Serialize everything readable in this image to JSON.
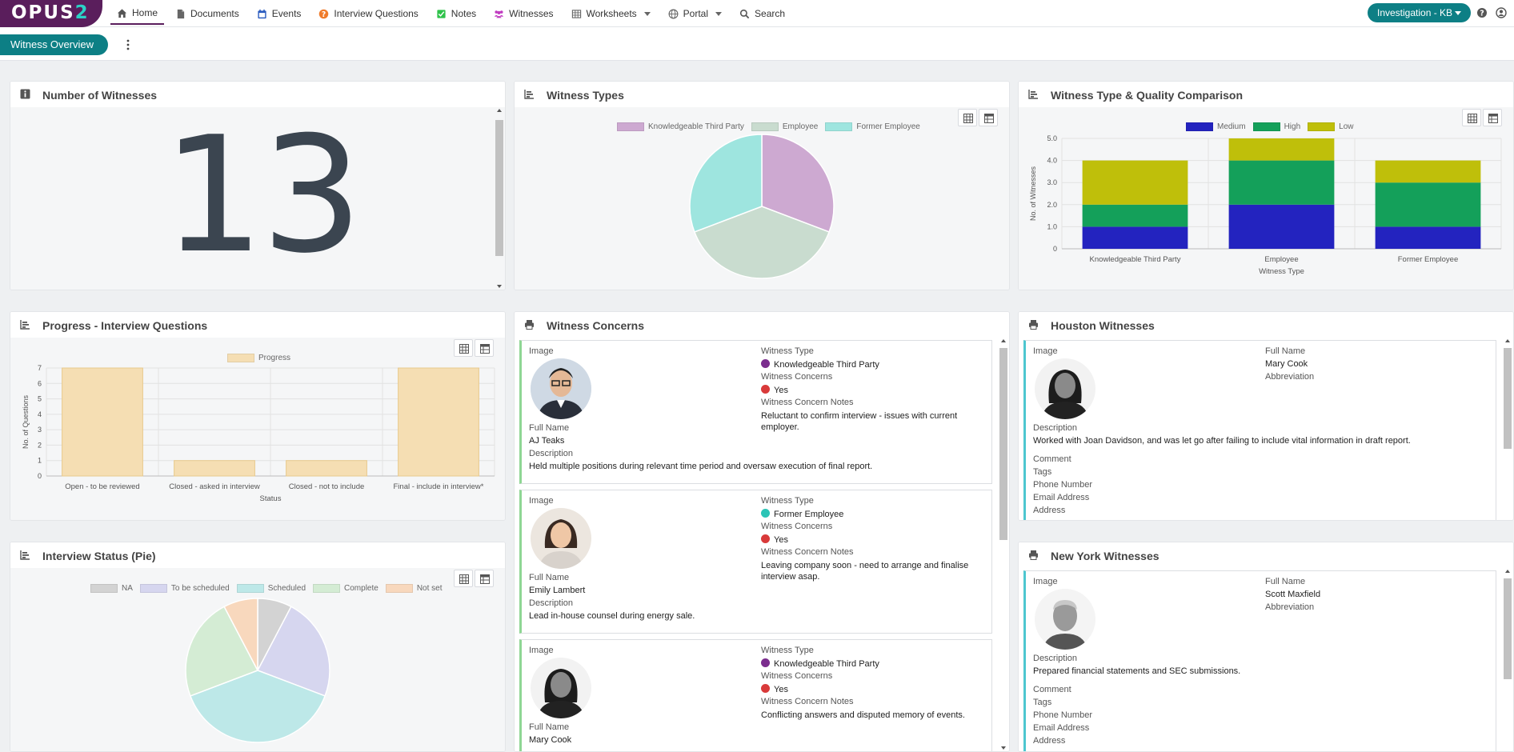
{
  "nav": {
    "brand": "OPUS",
    "brand_num": "2",
    "items": [
      {
        "label": "Home",
        "icon": "home-icon"
      },
      {
        "label": "Documents",
        "icon": "document-icon"
      },
      {
        "label": "Events",
        "icon": "calendar-icon"
      },
      {
        "label": "Interview Questions",
        "icon": "question-icon"
      },
      {
        "label": "Notes",
        "icon": "note-icon"
      },
      {
        "label": "Witnesses",
        "icon": "people-icon"
      },
      {
        "label": "Worksheets",
        "icon": "table-icon"
      },
      {
        "label": "Portal",
        "icon": "globe-icon"
      },
      {
        "label": "Search",
        "icon": "search-icon"
      }
    ],
    "investigation": "Investigation - KB"
  },
  "subbar": {
    "tab": "Witness Overview"
  },
  "panels": {
    "num_witnesses": {
      "title": "Number of Witnesses",
      "value": "13"
    },
    "witness_types": {
      "title": "Witness Types"
    },
    "type_quality": {
      "title": "Witness Type & Quality Comparison"
    },
    "progress": {
      "title": "Progress - Interview Questions"
    },
    "concerns": {
      "title": "Witness Concerns"
    },
    "houston": {
      "title": "Houston Witnesses"
    },
    "interview_status": {
      "title": "Interview Status (Pie)"
    },
    "newyork": {
      "title": "New York Witnesses"
    }
  },
  "labels": {
    "image": "Image",
    "full_name": "Full Name",
    "description": "Description",
    "witness_type": "Witness Type",
    "witness_concerns": "Witness Concerns",
    "concern_notes": "Witness Concern Notes",
    "abbreviation": "Abbreviation",
    "comment": "Comment",
    "tags": "Tags",
    "phone": "Phone Number",
    "email": "Email Address",
    "address": "Address"
  },
  "concern_cards": [
    {
      "name": "AJ Teaks",
      "description": "Held multiple positions during relevant time period and oversaw execution of final report.",
      "type": "Knowledgeable Third Party",
      "type_color": "#7b2d8e",
      "concern": "Yes",
      "concern_color": "#d93a3a",
      "notes": "Reluctant to confirm interview - issues with current employer."
    },
    {
      "name": "Emily Lambert",
      "description": "Lead in-house counsel during energy sale.",
      "type": "Former Employee",
      "type_color": "#2bc4b6",
      "concern": "Yes",
      "concern_color": "#d93a3a",
      "notes": "Leaving company soon - need to arrange and finalise interview asap."
    },
    {
      "name": "Mary Cook",
      "description": "",
      "type": "Knowledgeable Third Party",
      "type_color": "#7b2d8e",
      "concern": "Yes",
      "concern_color": "#d93a3a",
      "notes": "Conflicting answers and disputed memory of events."
    }
  ],
  "houston_card": {
    "name": "Mary Cook",
    "description": "Worked with Joan Davidson, and was let go after failing to include vital information in draft report."
  },
  "newyork_card": {
    "name": "Scott Maxfield",
    "description": "Prepared financial statements and SEC submissions."
  },
  "chart_data": [
    {
      "type": "pie",
      "title": "Witness Types",
      "categories": [
        "Knowledgeable Third Party",
        "Employee",
        "Former Employee"
      ],
      "values": [
        4,
        5,
        4
      ],
      "colors": [
        "#cda9d1",
        "#c9dccf",
        "#9ee5df"
      ]
    },
    {
      "type": "bar",
      "stacked": true,
      "title": "Witness Type & Quality Comparison",
      "categories": [
        "Knowledgeable Third Party",
        "Employee",
        "Former Employee"
      ],
      "series": [
        {
          "name": "Medium",
          "values": [
            1,
            2,
            1
          ],
          "color": "#2323bf"
        },
        {
          "name": "High",
          "values": [
            1,
            2,
            2
          ],
          "color": "#14a05a"
        },
        {
          "name": "Low",
          "values": [
            2,
            1,
            1
          ],
          "color": "#bfbf0a"
        }
      ],
      "xlabel": "Witness Type",
      "ylabel": "No. of Witnesses",
      "yticks": [
        "0",
        "1.0",
        "2.0",
        "3.0",
        "4.0",
        "5.0"
      ],
      "ylim": [
        0,
        5
      ],
      "legend": "top"
    },
    {
      "type": "bar",
      "title": "Progress - Interview Questions",
      "categories": [
        "Open - to be reviewed",
        "Closed - asked in interview",
        "Closed - not to include",
        "Final - include in interview*"
      ],
      "series": [
        {
          "name": "Progress",
          "values": [
            7,
            1,
            1,
            7
          ],
          "color": "#f5deb3"
        }
      ],
      "xlabel": "Status",
      "ylabel": "No. of Questions",
      "yticks": [
        "0",
        "1",
        "2",
        "3",
        "4",
        "5",
        "6",
        "7"
      ],
      "ylim": [
        0,
        7
      ],
      "legend": "top"
    },
    {
      "type": "pie",
      "title": "Interview Status (Pie)",
      "categories": [
        "NA",
        "To be scheduled",
        "Scheduled",
        "Complete",
        "Not set"
      ],
      "values": [
        1,
        3,
        5,
        3,
        1
      ],
      "colors": [
        "#d3d3d3",
        "#d6d6ef",
        "#bde8e8",
        "#d4ecd4",
        "#f8d8bd"
      ]
    }
  ]
}
